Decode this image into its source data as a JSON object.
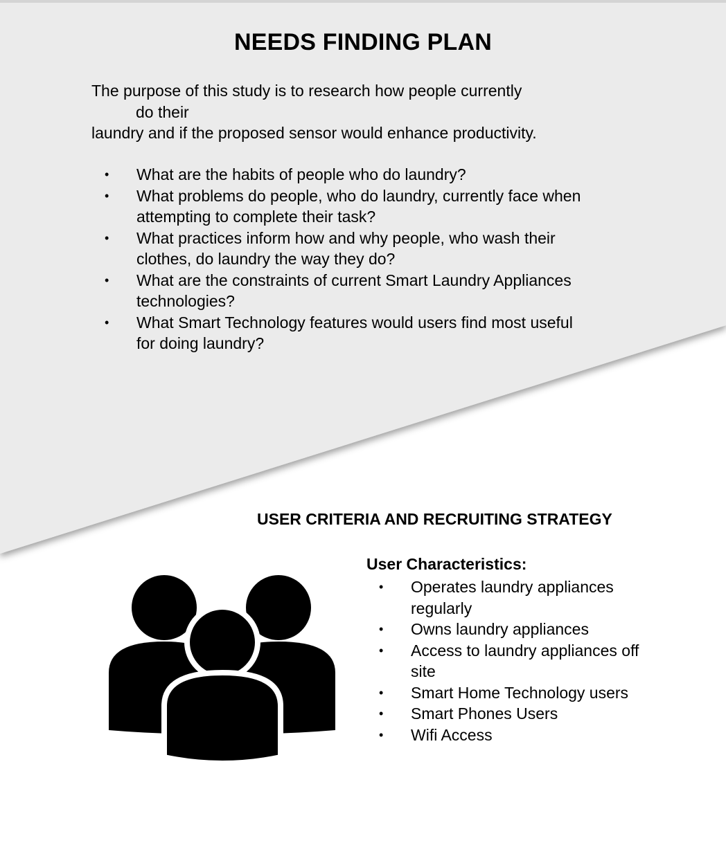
{
  "colors": {
    "panel": "#ebebeb",
    "page": "#ffffff",
    "text": "#000000"
  },
  "needs_finding": {
    "title": "NEEDS FINDING PLAN",
    "purpose_line1": "The purpose of this study is to research how people currently",
    "purpose_line2": "do their",
    "purpose_line3": "laundry and if the proposed sensor would enhance productivity.",
    "questions": [
      "What are the habits of people who do laundry?",
      "What problems do people, who do laundry, currently face when attempting to complete their task?",
      "What practices inform how and why people, who wash their clothes, do laundry the way they do?",
      "What are the constraints of current Smart Laundry Appliances technologies?",
      "What Smart Technology features would users find most useful for doing laundry?"
    ]
  },
  "user_criteria": {
    "title": "USER CRITERIA AND RECRUITING STRATEGY",
    "characteristics_heading": "User Characteristics:",
    "characteristics": [
      "Operates laundry appliances regularly",
      "Owns laundry appliances",
      "Access to laundry appliances off site",
      "Smart Home Technology users",
      "Smart Phones Users",
      "Wifi Access"
    ],
    "icon": "users-group-icon"
  }
}
